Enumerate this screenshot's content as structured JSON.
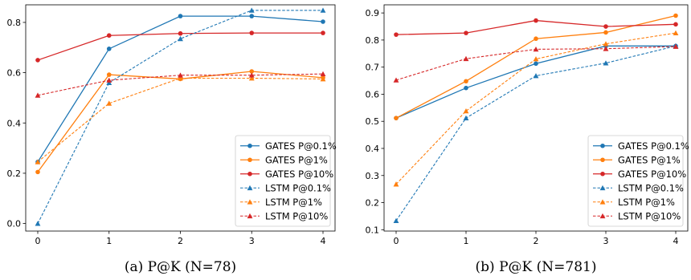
{
  "chart_data": [
    {
      "type": "line",
      "caption": "(a) P@K (N=78)",
      "x": [
        0,
        1,
        2,
        3,
        4
      ],
      "xticks": [
        "0",
        "1",
        "2",
        "3",
        "4"
      ],
      "ylim": [
        -0.03,
        0.87
      ],
      "yticks": [
        "0.0",
        "0.2",
        "0.4",
        "0.6",
        "0.8"
      ],
      "ytick_values": [
        0.0,
        0.2,
        0.4,
        0.6,
        0.8
      ],
      "grid": false,
      "legend_position": "lower-right",
      "series": [
        {
          "name": "GATES P@0.1%",
          "values": [
            0.245,
            0.695,
            0.825,
            0.825,
            0.803
          ],
          "color": "#1f77b4",
          "style": "solid",
          "marker": "circle"
        },
        {
          "name": "GATES P@1%",
          "values": [
            0.205,
            0.592,
            0.575,
            0.605,
            0.58
          ],
          "color": "#ff7f0e",
          "style": "solid",
          "marker": "circle"
        },
        {
          "name": "GATES P@10%",
          "values": [
            0.65,
            0.748,
            0.756,
            0.758,
            0.758
          ],
          "color": "#d62728",
          "style": "solid",
          "marker": "circle"
        },
        {
          "name": "LSTM P@0.1%",
          "values": [
            0.0,
            0.56,
            0.735,
            0.848,
            0.848
          ],
          "color": "#1f77b4",
          "style": "dashed",
          "marker": "triangle"
        },
        {
          "name": "LSTM P@1%",
          "values": [
            0.245,
            0.478,
            0.578,
            0.578,
            0.575
          ],
          "color": "#ff7f0e",
          "style": "dashed",
          "marker": "triangle"
        },
        {
          "name": "LSTM P@10%",
          "values": [
            0.51,
            0.57,
            0.59,
            0.59,
            0.595
          ],
          "color": "#d62728",
          "style": "dashed",
          "marker": "triangle"
        }
      ]
    },
    {
      "type": "line",
      "caption": "(b) P@K (N=781)",
      "x": [
        0,
        1,
        2,
        3,
        4
      ],
      "xticks": [
        "0",
        "1",
        "2",
        "3",
        "4"
      ],
      "ylim": [
        0.095,
        0.93
      ],
      "yticks": [
        "0.1",
        "0.2",
        "0.3",
        "0.4",
        "0.5",
        "0.6",
        "0.7",
        "0.8",
        "0.9"
      ],
      "ytick_values": [
        0.1,
        0.2,
        0.3,
        0.4,
        0.5,
        0.6,
        0.7,
        0.8,
        0.9
      ],
      "grid": false,
      "legend_position": "lower-right",
      "series": [
        {
          "name": "GATES P@0.1%",
          "values": [
            0.512,
            0.623,
            0.713,
            0.778,
            0.778
          ],
          "color": "#1f77b4",
          "style": "solid",
          "marker": "circle"
        },
        {
          "name": "GATES P@1%",
          "values": [
            0.512,
            0.648,
            0.805,
            0.828,
            0.89
          ],
          "color": "#ff7f0e",
          "style": "solid",
          "marker": "circle"
        },
        {
          "name": "GATES P@10%",
          "values": [
            0.82,
            0.826,
            0.872,
            0.85,
            0.858
          ],
          "color": "#d62728",
          "style": "solid",
          "marker": "circle"
        },
        {
          "name": "LSTM P@0.1%",
          "values": [
            0.133,
            0.512,
            0.668,
            0.715,
            0.778
          ],
          "color": "#1f77b4",
          "style": "dashed",
          "marker": "triangle"
        },
        {
          "name": "LSTM P@1%",
          "values": [
            0.268,
            0.538,
            0.73,
            0.786,
            0.826
          ],
          "color": "#ff7f0e",
          "style": "dashed",
          "marker": "triangle"
        },
        {
          "name": "LSTM P@10%",
          "values": [
            0.652,
            0.731,
            0.766,
            0.768,
            0.776
          ],
          "color": "#d62728",
          "style": "dashed",
          "marker": "triangle"
        }
      ]
    }
  ]
}
